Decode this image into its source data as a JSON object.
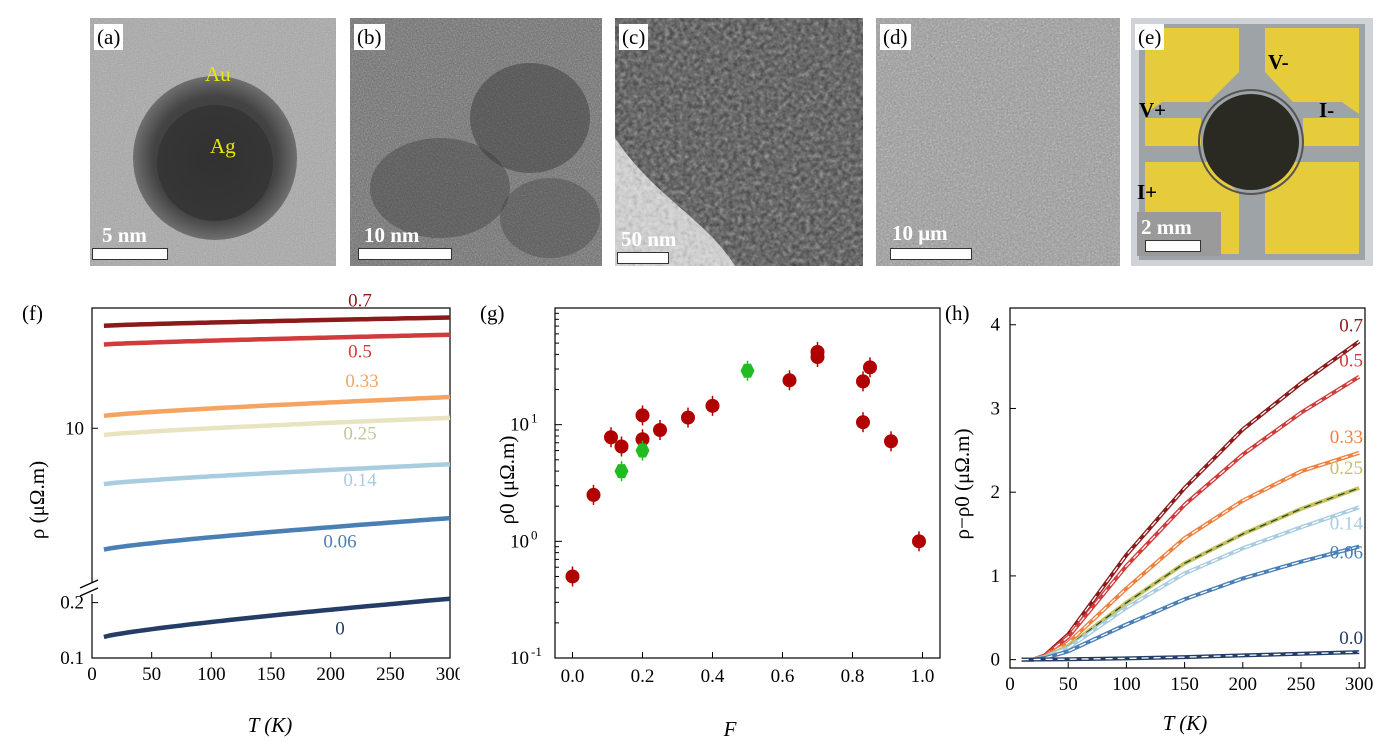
{
  "images": {
    "a": {
      "tag": "(a)",
      "scale": "5 nm",
      "label_au": "Au",
      "label_ag": "Ag"
    },
    "b": {
      "tag": "(b)",
      "scale": "10 nm"
    },
    "c": {
      "tag": "(c)",
      "scale": "50 nm"
    },
    "d": {
      "tag": "(d)",
      "scale": "10 μm"
    },
    "e": {
      "tag": "(e)",
      "scale": "2 mm",
      "vminus": "V-",
      "vplus": "V+",
      "iminus": "I-",
      "iplus": "I+"
    }
  },
  "chart_data": [
    {
      "panel": "(f)",
      "type": "line",
      "xlabel": "T (K)",
      "ylabel": "ρ (μΩ.m)",
      "xlim": [
        0,
        300
      ],
      "xticks": [
        "0",
        "50",
        "100",
        "150",
        "200",
        "250",
        "300"
      ],
      "yscale": "log with axis break",
      "yticks": [
        "0.1",
        "0.2",
        "10"
      ],
      "series": [
        {
          "name": "0.7",
          "color": "#8b1a1a",
          "T": [
            10,
            300
          ],
          "rho": [
            25.5,
            27.5
          ]
        },
        {
          "name": "0.5",
          "color": "#d23b3b",
          "T": [
            10,
            300
          ],
          "rho": [
            21.5,
            23.5
          ]
        },
        {
          "name": "0.33",
          "color": "#f4a460",
          "T": [
            10,
            300
          ],
          "rho": [
            11.2,
            13.3
          ]
        },
        {
          "name": "0.25",
          "color": "#e8e4c0",
          "T": [
            10,
            300
          ],
          "rho": [
            9.4,
            11.0
          ]
        },
        {
          "name": "0.14",
          "color": "#a8cce0",
          "T": [
            10,
            300
          ],
          "rho": [
            6.0,
            7.2
          ]
        },
        {
          "name": "0.06",
          "color": "#4a7fb5",
          "T": [
            10,
            300
          ],
          "rho": [
            3.3,
            4.4
          ]
        },
        {
          "name": "0",
          "color": "#233d66",
          "T": [
            10,
            300
          ],
          "rho": [
            0.13,
            0.21
          ]
        }
      ]
    },
    {
      "panel": "(g)",
      "type": "scatter",
      "xlabel": "F",
      "ylabel": "ρ0 (μΩ.m)",
      "xlim": [
        -0.05,
        1.05
      ],
      "ylim": [
        0.1,
        100
      ],
      "yscale": "log",
      "xticks": [
        "0.0",
        "0.2",
        "0.4",
        "0.6",
        "0.8",
        "1.0"
      ],
      "yticks": [
        "10-1",
        "100",
        "101"
      ],
      "series": [
        {
          "name": "red",
          "color": "#b00000",
          "points": [
            {
              "F": 0.0,
              "rho0": 0.5
            },
            {
              "F": 0.06,
              "rho0": 2.5
            },
            {
              "F": 0.11,
              "rho0": 7.8
            },
            {
              "F": 0.14,
              "rho0": 6.5
            },
            {
              "F": 0.2,
              "rho0": 12.0
            },
            {
              "F": 0.2,
              "rho0": 7.5
            },
            {
              "F": 0.25,
              "rho0": 9.0
            },
            {
              "F": 0.33,
              "rho0": 11.5
            },
            {
              "F": 0.4,
              "rho0": 14.5
            },
            {
              "F": 0.62,
              "rho0": 24.0
            },
            {
              "F": 0.7,
              "rho0": 42.0
            },
            {
              "F": 0.7,
              "rho0": 38.0
            },
            {
              "F": 0.83,
              "rho0": 23.5
            },
            {
              "F": 0.83,
              "rho0": 10.5
            },
            {
              "F": 0.85,
              "rho0": 31.0
            },
            {
              "F": 0.91,
              "rho0": 7.2
            },
            {
              "F": 0.99,
              "rho0": 1.0
            }
          ]
        },
        {
          "name": "green",
          "color": "#22bb22",
          "points": [
            {
              "F": 0.14,
              "rho0": 4.0
            },
            {
              "F": 0.2,
              "rho0": 6.0
            },
            {
              "F": 0.5,
              "rho0": 29.0
            }
          ]
        }
      ]
    },
    {
      "panel": "(h)",
      "type": "line",
      "xlabel": "T (K)",
      "ylabel": "ρ−ρ0 (μΩ.m)",
      "xlim": [
        0,
        305
      ],
      "ylim": [
        -0.1,
        4.2
      ],
      "xticks": [
        "0",
        "50",
        "100",
        "150",
        "200",
        "250",
        "300"
      ],
      "yticks": [
        "0",
        "1",
        "2",
        "3",
        "4"
      ],
      "series": [
        {
          "name": "0.7",
          "color": "#8b1a1a",
          "T": [
            10,
            20,
            30,
            50,
            100,
            150,
            200,
            250,
            300
          ],
          "v": [
            0.0,
            0.0,
            0.05,
            0.3,
            1.25,
            2.05,
            2.75,
            3.3,
            3.8
          ]
        },
        {
          "name": "0.5",
          "color": "#d23b3b",
          "T": [
            10,
            20,
            30,
            50,
            100,
            150,
            200,
            250,
            300
          ],
          "v": [
            0.0,
            0.0,
            0.05,
            0.27,
            1.12,
            1.85,
            2.45,
            2.95,
            3.38
          ]
        },
        {
          "name": "0.33",
          "color": "#f08040",
          "T": [
            10,
            20,
            30,
            50,
            100,
            150,
            200,
            250,
            300
          ],
          "v": [
            0.0,
            0.0,
            0.04,
            0.2,
            0.85,
            1.45,
            1.9,
            2.25,
            2.47
          ]
        },
        {
          "name": "0.25",
          "color": "#c8c060",
          "T": [
            10,
            20,
            30,
            50,
            100,
            150,
            200,
            250,
            300
          ],
          "v": [
            0.0,
            0.0,
            0.03,
            0.16,
            0.68,
            1.15,
            1.5,
            1.8,
            2.05
          ]
        },
        {
          "name": "0.14",
          "color": "#a8cce0",
          "T": [
            10,
            20,
            30,
            50,
            100,
            150,
            200,
            250,
            300
          ],
          "v": [
            0.0,
            0.0,
            0.03,
            0.14,
            0.62,
            1.03,
            1.33,
            1.58,
            1.82
          ]
        },
        {
          "name": "0.06",
          "color": "#4a7fb5",
          "T": [
            10,
            20,
            30,
            50,
            100,
            150,
            200,
            250,
            300
          ],
          "v": [
            0.0,
            0.0,
            0.02,
            0.1,
            0.42,
            0.72,
            0.97,
            1.17,
            1.35
          ]
        },
        {
          "name": "0.0",
          "color": "#233d66",
          "T": [
            10,
            50,
            100,
            150,
            200,
            250,
            300
          ],
          "v": [
            0.0,
            0.005,
            0.015,
            0.03,
            0.05,
            0.07,
            0.09
          ]
        }
      ]
    }
  ]
}
